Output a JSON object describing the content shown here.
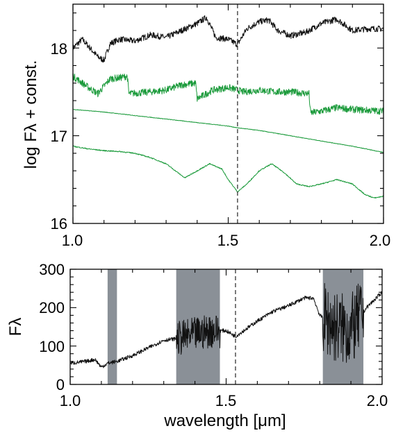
{
  "chart_data": [
    {
      "type": "line",
      "ylabel": "log Fλ + const.",
      "xlim": [
        1.0,
        2.0
      ],
      "ylim": [
        16.0,
        18.5
      ],
      "xticks": [
        1.0,
        1.5,
        2.0
      ],
      "xtick_labels": [
        "1.0",
        "1.5",
        "2.0"
      ],
      "yticks": [
        16,
        17,
        18
      ],
      "ytick_labels": [
        "16",
        "17",
        "18"
      ],
      "vline": 1.53,
      "grid": false,
      "colors": {
        "black": "#111111",
        "green": "#1a9a3a"
      },
      "series": [
        {
          "color": "#111111",
          "x": [
            1.0,
            1.03,
            1.05,
            1.08,
            1.1,
            1.12,
            1.15,
            1.2,
            1.25,
            1.3,
            1.35,
            1.4,
            1.43,
            1.46,
            1.5,
            1.53,
            1.56,
            1.6,
            1.63,
            1.66,
            1.7,
            1.75,
            1.8,
            1.85,
            1.9,
            1.95,
            2.0
          ],
          "y": [
            18.0,
            18.1,
            18.02,
            17.9,
            17.86,
            18.05,
            18.1,
            18.08,
            18.15,
            18.12,
            18.2,
            18.28,
            18.35,
            18.12,
            18.1,
            18.04,
            18.22,
            18.3,
            18.32,
            18.2,
            18.14,
            18.18,
            18.28,
            18.33,
            18.2,
            18.22,
            18.22
          ],
          "noise": 0.035
        },
        {
          "color": "#1a9a3a",
          "x": [
            1.0,
            1.05,
            1.08,
            1.12,
            1.15,
            1.175,
            1.18,
            1.25,
            1.3,
            1.35,
            1.395,
            1.4,
            1.45,
            1.5,
            1.55,
            1.6,
            1.65,
            1.7,
            1.76,
            1.765,
            1.8,
            1.85,
            1.9,
            2.0
          ],
          "y": [
            17.68,
            17.55,
            17.48,
            17.65,
            17.66,
            17.68,
            17.48,
            17.5,
            17.52,
            17.58,
            17.6,
            17.42,
            17.52,
            17.55,
            17.5,
            17.52,
            17.5,
            17.5,
            17.48,
            17.26,
            17.28,
            17.32,
            17.3,
            17.28
          ],
          "noise": 0.04
        },
        {
          "color": "#1a9a3a",
          "x": [
            1.0,
            1.1,
            1.2,
            1.3,
            1.4,
            1.5,
            1.53,
            1.6,
            1.7,
            1.8,
            1.9,
            2.0
          ],
          "y": [
            17.3,
            17.27,
            17.23,
            17.19,
            17.15,
            17.11,
            17.09,
            17.06,
            17.0,
            16.94,
            16.88,
            16.81
          ],
          "noise": 0.003
        },
        {
          "color": "#1a9a3a",
          "x": [
            1.0,
            1.05,
            1.1,
            1.15,
            1.2,
            1.25,
            1.3,
            1.33,
            1.36,
            1.4,
            1.44,
            1.48,
            1.5,
            1.53,
            1.56,
            1.6,
            1.64,
            1.68,
            1.72,
            1.76,
            1.8,
            1.85,
            1.9,
            1.94,
            1.97,
            2.0
          ],
          "y": [
            16.88,
            16.85,
            16.83,
            16.82,
            16.8,
            16.75,
            16.68,
            16.6,
            16.52,
            16.6,
            16.68,
            16.62,
            16.5,
            16.36,
            16.45,
            16.6,
            16.68,
            16.58,
            16.45,
            16.42,
            16.45,
            16.5,
            16.45,
            16.33,
            16.29,
            16.31
          ],
          "noise": 0.006
        }
      ]
    },
    {
      "type": "line",
      "xlabel": "wavelength [μm]",
      "ylabel": "Fλ",
      "xlim": [
        1.0,
        2.0
      ],
      "ylim": [
        0,
        300
      ],
      "xticks": [
        1.0,
        1.5,
        2.0
      ],
      "xtick_labels": [
        "1.0",
        "1.5",
        "2.0"
      ],
      "yticks": [
        0,
        100,
        200,
        300
      ],
      "ytick_labels": [
        "0",
        "100",
        "200",
        "300"
      ],
      "vline": 1.53,
      "grid": false,
      "shaded_bands": [
        [
          1.12,
          1.15
        ],
        [
          1.34,
          1.48
        ],
        [
          1.81,
          1.94
        ]
      ],
      "band_color": "#8a9097",
      "series": [
        {
          "color": "#111111",
          "x": [
            1.0,
            1.05,
            1.08,
            1.1,
            1.12,
            1.15,
            1.2,
            1.25,
            1.3,
            1.35,
            1.4,
            1.45,
            1.5,
            1.53,
            1.6,
            1.65,
            1.7,
            1.75,
            1.78,
            1.8,
            1.85,
            1.9,
            1.95,
            2.0
          ],
          "y": [
            55,
            60,
            65,
            45,
            55,
            60,
            75,
            95,
            115,
            120,
            130,
            140,
            140,
            125,
            165,
            190,
            205,
            225,
            225,
            180,
            150,
            140,
            200,
            240
          ],
          "noise": 5,
          "noisy_regions": [
            [
              1.34,
              1.48,
              45
            ],
            [
              1.81,
              1.94,
              95
            ]
          ]
        }
      ]
    }
  ]
}
